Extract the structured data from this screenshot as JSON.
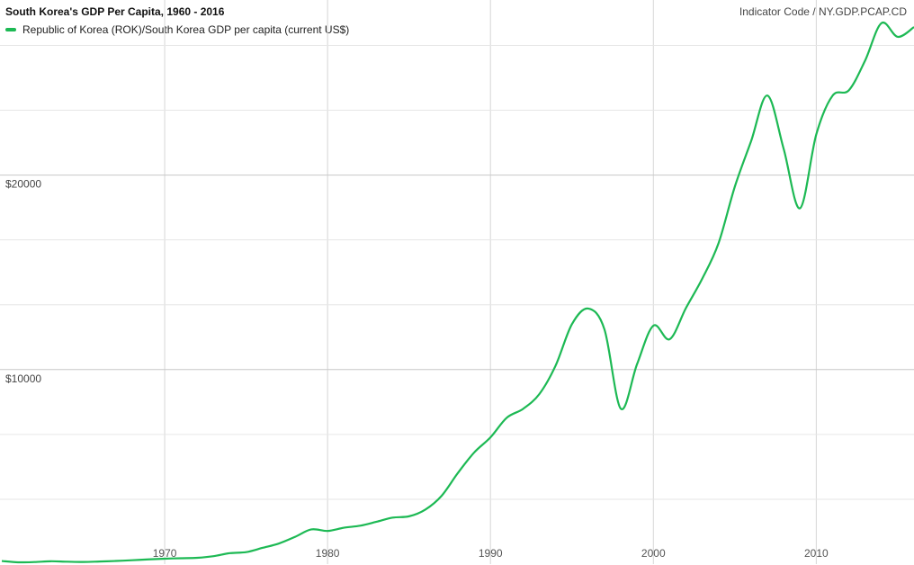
{
  "indicator": "Indicator Code / NY.GDP.PCAP.CD",
  "chart_data": {
    "type": "line",
    "title": "South Korea's GDP Per Capita, 1960 - 2016",
    "xlabel": "",
    "ylabel": "",
    "xlim": [
      1960,
      2016
    ],
    "ylim": [
      0,
      29000
    ],
    "x_ticks": [
      {
        "value": 1970,
        "label": "1970"
      },
      {
        "value": 1980,
        "label": "1980"
      },
      {
        "value": 1990,
        "label": "1990"
      },
      {
        "value": 2000,
        "label": "2000"
      },
      {
        "value": 2010,
        "label": "2010"
      }
    ],
    "y_gridlines": [
      3333,
      6667,
      10000,
      13333,
      16667,
      20000,
      23333,
      26667
    ],
    "y_ticks": [
      {
        "value": 10000,
        "label": "$10000"
      },
      {
        "value": 20000,
        "label": "$20000"
      }
    ],
    "grid": true,
    "legend": "top-left",
    "series": [
      {
        "name": "Republic of Korea (ROK)/South Korea GDP per capita (current US$)",
        "color": "#1db954",
        "x": [
          1960,
          1961,
          1962,
          1963,
          1964,
          1965,
          1966,
          1967,
          1968,
          1969,
          1970,
          1971,
          1972,
          1973,
          1974,
          1975,
          1976,
          1977,
          1978,
          1979,
          1980,
          1981,
          1982,
          1983,
          1984,
          1985,
          1986,
          1987,
          1988,
          1989,
          1990,
          1991,
          1992,
          1993,
          1994,
          1995,
          1996,
          1997,
          1998,
          1999,
          2000,
          2001,
          2002,
          2003,
          2004,
          2005,
          2006,
          2007,
          2008,
          2009,
          2010,
          2011,
          2012,
          2013,
          2014,
          2015,
          2016
        ],
        "values": [
          158,
          94,
          106,
          146,
          124,
          109,
          133,
          161,
          199,
          243,
          279,
          301,
          323,
          406,
          563,
          616,
          833,
          1055,
          1399,
          1783,
          1704,
          1870,
          1973,
          2175,
          2390,
          2457,
          2803,
          3511,
          4686,
          5738,
          6516,
          7524,
          7980,
          8741,
          10206,
          12333,
          13138,
          12059,
          7989,
          10282,
          12257,
          11561,
          13165,
          14673,
          16496,
          19403,
          21744,
          24086,
          21345,
          18292,
          22087,
          24080,
          24359,
          25890,
          27811,
          27105,
          27608
        ]
      }
    ]
  }
}
